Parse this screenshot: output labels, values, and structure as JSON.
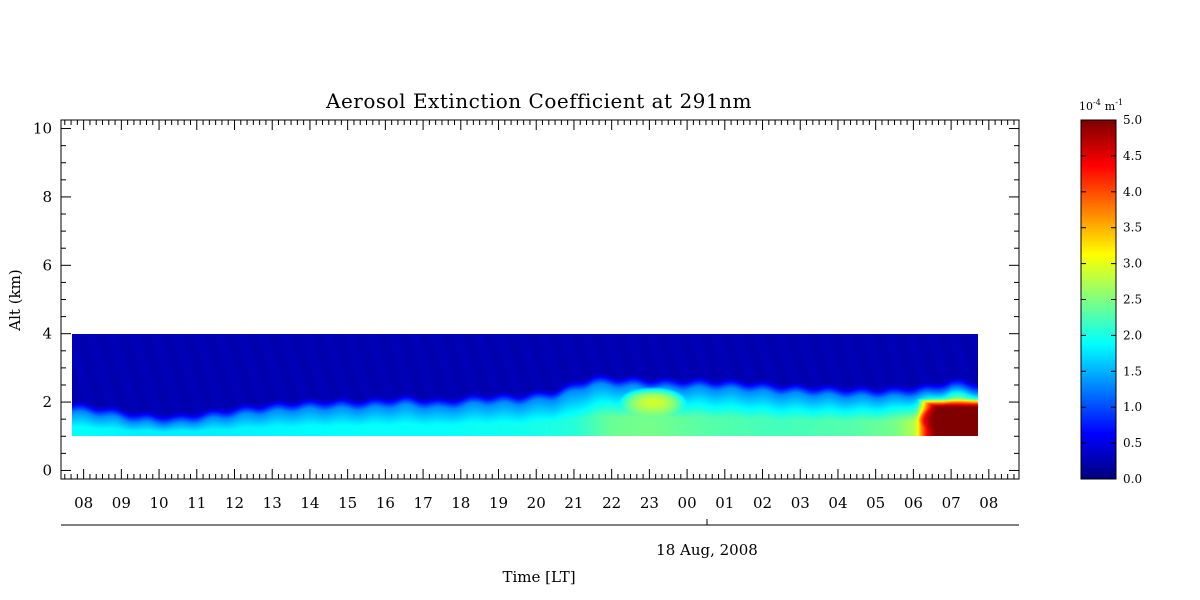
{
  "chart_data": {
    "type": "heatmap",
    "title": "Aerosol Extinction Coefficient at 291nm",
    "xlabel": "Time [LT]",
    "ylabel": "Alt (km)",
    "date_label": "18 Aug, 2008",
    "x_tick_labels": [
      "08",
      "09",
      "10",
      "11",
      "12",
      "13",
      "14",
      "15",
      "16",
      "17",
      "18",
      "19",
      "20",
      "21",
      "22",
      "23",
      "00",
      "01",
      "02",
      "03",
      "04",
      "05",
      "06",
      "07",
      "08"
    ],
    "xlim_hours": [
      7.4,
      32.8
    ],
    "ylim": [
      -0.25,
      10.25
    ],
    "y_ticks": [
      0,
      2,
      4,
      6,
      8,
      10
    ],
    "grid": false,
    "colorbar": {
      "unit_base": "10",
      "unit_exp": "-4",
      "unit_m": "m",
      "unit_m_exp": "-1",
      "range": [
        0.0,
        5.0
      ],
      "ticks": [
        "0.0",
        "0.5",
        "1.0",
        "1.5",
        "2.0",
        "2.5",
        "3.0",
        "3.5",
        "4.0",
        "4.5",
        "5.0"
      ],
      "colormap": "jet"
    },
    "data_range": {
      "time_start_hour": 7.7,
      "time_end_hour": 31.7,
      "alt_min_km": 1.0,
      "alt_max_km": 4.0
    },
    "layer_top_km": {
      "times": [
        7.7,
        8.5,
        9.5,
        10.5,
        11.5,
        12.5,
        13.5,
        14.5,
        15.5,
        16.5,
        17.5,
        18.5,
        19.5,
        20.5,
        21.0,
        21.5,
        22.5,
        23.5,
        24.5,
        25.5,
        26.5,
        27.5,
        28.5,
        29.5,
        30.5,
        31.0,
        31.7
      ],
      "values": [
        1.75,
        1.65,
        1.45,
        1.4,
        1.55,
        1.7,
        1.8,
        1.85,
        1.85,
        1.95,
        1.85,
        2.0,
        2.0,
        2.15,
        2.35,
        2.55,
        2.5,
        2.45,
        2.45,
        2.4,
        2.3,
        2.25,
        2.2,
        2.2,
        2.3,
        2.45,
        2.35
      ]
    },
    "layer_surface_value": {
      "times": [
        7.7,
        9.5,
        11.5,
        13.5,
        15.5,
        17.5,
        19.5,
        21.0,
        22.0,
        23.0,
        24.5,
        26.5,
        28.5,
        29.5,
        30.0,
        30.5,
        31.7
      ],
      "values": [
        1.9,
        1.8,
        1.8,
        1.85,
        1.9,
        1.9,
        1.95,
        2.05,
        2.4,
        2.45,
        2.3,
        2.2,
        2.3,
        2.45,
        2.75,
        4.2,
        4.8
      ]
    },
    "hotspots": [
      {
        "time": 23.1,
        "alt_km": 2.0,
        "value": 2.9
      },
      {
        "time": 31.0,
        "alt_km": 1.5,
        "value": 5.0
      }
    ],
    "background_value": 0.25
  }
}
